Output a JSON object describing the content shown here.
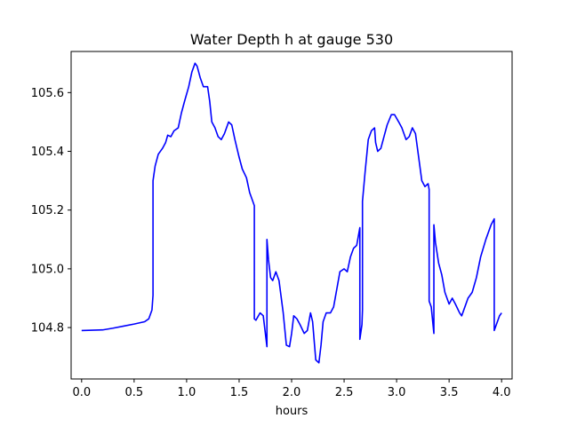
{
  "chart_data": {
    "type": "line",
    "title": "Water Depth h at gauge 530",
    "xlabel": "hours",
    "ylabel": "",
    "xlim": [
      -0.1,
      4.1
    ],
    "ylim": [
      104.625,
      105.74
    ],
    "grid": false,
    "legend": "none",
    "x_ticks": [
      {
        "value": 0.0,
        "label": "0.0"
      },
      {
        "value": 0.5,
        "label": "0.5"
      },
      {
        "value": 1.0,
        "label": "1.0"
      },
      {
        "value": 1.5,
        "label": "1.5"
      },
      {
        "value": 2.0,
        "label": "2.0"
      },
      {
        "value": 2.5,
        "label": "2.5"
      },
      {
        "value": 3.0,
        "label": "3.0"
      },
      {
        "value": 3.5,
        "label": "3.5"
      },
      {
        "value": 4.0,
        "label": "4.0"
      }
    ],
    "y_ticks": [
      {
        "value": 104.8,
        "label": "104.8"
      },
      {
        "value": 105.0,
        "label": "105.0"
      },
      {
        "value": 105.2,
        "label": "105.2"
      },
      {
        "value": 105.4,
        "label": "105.4"
      },
      {
        "value": 105.6,
        "label": "105.6"
      }
    ],
    "series": [
      {
        "color": "#0000ff",
        "points": [
          [
            0.0,
            104.79
          ],
          [
            0.2,
            104.792
          ],
          [
            0.3,
            104.798
          ],
          [
            0.4,
            104.805
          ],
          [
            0.5,
            104.812
          ],
          [
            0.6,
            104.82
          ],
          [
            0.64,
            104.83
          ],
          [
            0.67,
            104.86
          ],
          [
            0.68,
            104.91
          ],
          [
            0.68,
            105.3
          ],
          [
            0.7,
            105.35
          ],
          [
            0.73,
            105.39
          ],
          [
            0.77,
            105.41
          ],
          [
            0.8,
            105.43
          ],
          [
            0.82,
            105.455
          ],
          [
            0.85,
            105.45
          ],
          [
            0.88,
            105.47
          ],
          [
            0.92,
            105.48
          ],
          [
            0.95,
            105.53
          ],
          [
            0.98,
            105.57
          ],
          [
            1.02,
            105.62
          ],
          [
            1.05,
            105.67
          ],
          [
            1.08,
            105.7
          ],
          [
            1.1,
            105.69
          ],
          [
            1.13,
            105.65
          ],
          [
            1.16,
            105.62
          ],
          [
            1.2,
            105.62
          ],
          [
            1.22,
            105.57
          ],
          [
            1.24,
            105.5
          ],
          [
            1.27,
            105.48
          ],
          [
            1.3,
            105.45
          ],
          [
            1.33,
            105.44
          ],
          [
            1.36,
            105.46
          ],
          [
            1.4,
            105.5
          ],
          [
            1.43,
            105.49
          ],
          [
            1.46,
            105.44
          ],
          [
            1.5,
            105.38
          ],
          [
            1.53,
            105.34
          ],
          [
            1.57,
            105.31
          ],
          [
            1.6,
            105.26
          ],
          [
            1.63,
            105.23
          ],
          [
            1.645,
            105.215
          ],
          [
            1.645,
            104.83
          ],
          [
            1.66,
            104.825
          ],
          [
            1.7,
            104.85
          ],
          [
            1.73,
            104.84
          ],
          [
            1.765,
            104.735
          ],
          [
            1.765,
            105.1
          ],
          [
            1.78,
            105.03
          ],
          [
            1.8,
            104.97
          ],
          [
            1.82,
            104.96
          ],
          [
            1.85,
            104.99
          ],
          [
            1.88,
            104.96
          ],
          [
            1.92,
            104.85
          ],
          [
            1.95,
            104.74
          ],
          [
            1.98,
            104.735
          ],
          [
            2.0,
            104.78
          ],
          [
            2.02,
            104.84
          ],
          [
            2.05,
            104.83
          ],
          [
            2.08,
            104.81
          ],
          [
            2.12,
            104.78
          ],
          [
            2.15,
            104.79
          ],
          [
            2.18,
            104.85
          ],
          [
            2.2,
            104.82
          ],
          [
            2.23,
            104.69
          ],
          [
            2.26,
            104.68
          ],
          [
            2.28,
            104.74
          ],
          [
            2.3,
            104.82
          ],
          [
            2.33,
            104.85
          ],
          [
            2.37,
            104.85
          ],
          [
            2.4,
            104.87
          ],
          [
            2.43,
            104.93
          ],
          [
            2.46,
            104.99
          ],
          [
            2.5,
            105.0
          ],
          [
            2.53,
            104.99
          ],
          [
            2.56,
            105.04
          ],
          [
            2.59,
            105.07
          ],
          [
            2.62,
            105.08
          ],
          [
            2.65,
            105.14
          ],
          [
            2.65,
            104.76
          ],
          [
            2.67,
            104.81
          ],
          [
            2.675,
            104.86
          ],
          [
            2.675,
            105.23
          ],
          [
            2.7,
            105.33
          ],
          [
            2.73,
            105.44
          ],
          [
            2.76,
            105.47
          ],
          [
            2.79,
            105.48
          ],
          [
            2.8,
            105.43
          ],
          [
            2.82,
            105.4
          ],
          [
            2.85,
            105.41
          ],
          [
            2.88,
            105.45
          ],
          [
            2.91,
            105.49
          ],
          [
            2.95,
            105.525
          ],
          [
            2.98,
            105.525
          ],
          [
            3.02,
            105.5
          ],
          [
            3.05,
            105.48
          ],
          [
            3.09,
            105.44
          ],
          [
            3.12,
            105.45
          ],
          [
            3.15,
            105.48
          ],
          [
            3.18,
            105.46
          ],
          [
            3.21,
            105.38
          ],
          [
            3.24,
            105.3
          ],
          [
            3.27,
            105.28
          ],
          [
            3.3,
            105.29
          ],
          [
            3.31,
            105.27
          ],
          [
            3.31,
            104.89
          ],
          [
            3.33,
            104.87
          ],
          [
            3.355,
            104.78
          ],
          [
            3.355,
            105.15
          ],
          [
            3.37,
            105.09
          ],
          [
            3.4,
            105.02
          ],
          [
            3.43,
            104.98
          ],
          [
            3.46,
            104.92
          ],
          [
            3.5,
            104.88
          ],
          [
            3.53,
            104.9
          ],
          [
            3.56,
            104.88
          ],
          [
            3.6,
            104.85
          ],
          [
            3.62,
            104.84
          ],
          [
            3.65,
            104.87
          ],
          [
            3.68,
            104.9
          ],
          [
            3.72,
            104.92
          ],
          [
            3.76,
            104.97
          ],
          [
            3.8,
            105.04
          ],
          [
            3.85,
            105.1
          ],
          [
            3.9,
            105.15
          ],
          [
            3.93,
            105.17
          ],
          [
            3.93,
            104.79
          ],
          [
            3.95,
            104.81
          ],
          [
            3.98,
            104.84
          ],
          [
            4.0,
            104.85
          ]
        ]
      }
    ]
  }
}
